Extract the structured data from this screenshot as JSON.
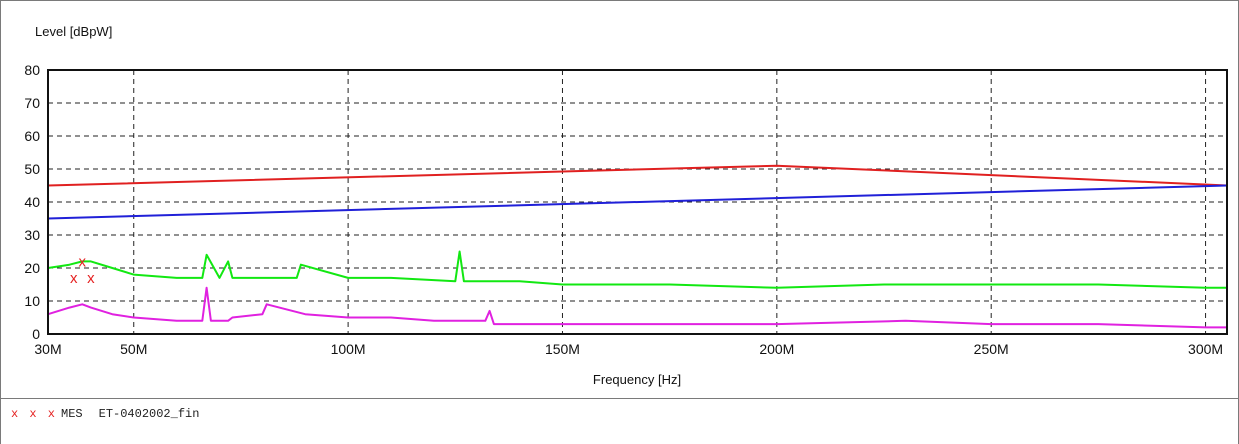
{
  "chart_data": {
    "type": "line",
    "ylabel": "Level [dBpW]",
    "xlabel": "Frequency [Hz]",
    "xlim": [
      30,
      305
    ],
    "ylim": [
      0,
      80
    ],
    "x_unit": "MHz",
    "y_ticks": [
      0,
      10,
      20,
      30,
      40,
      50,
      60,
      70,
      80
    ],
    "x_ticks": [
      {
        "value": 30,
        "label": "30M"
      },
      {
        "value": 50,
        "label": "50M"
      },
      {
        "value": 100,
        "label": "100M"
      },
      {
        "value": 150,
        "label": "150M"
      },
      {
        "value": 200,
        "label": "200M"
      },
      {
        "value": 250,
        "label": "250M"
      },
      {
        "value": 300,
        "label": "300M"
      }
    ],
    "grid": true,
    "series": [
      {
        "color": "#e02020",
        "x": [
          30,
          200,
          305
        ],
        "y": [
          45,
          51,
          45
        ]
      },
      {
        "color": "#2020d8",
        "x": [
          30,
          305
        ],
        "y": [
          35,
          45
        ]
      },
      {
        "color": "#12e812",
        "x": [
          30,
          35,
          38,
          40,
          45,
          50,
          60,
          66,
          67,
          70,
          72,
          73,
          80,
          88,
          89,
          100,
          110,
          125,
          126,
          127,
          130,
          140,
          150,
          160,
          175,
          200,
          225,
          250,
          275,
          300,
          305
        ],
        "y": [
          20,
          21,
          22,
          22,
          20,
          18,
          17,
          17,
          24,
          17,
          22,
          17,
          17,
          17,
          21,
          17,
          17,
          16,
          25,
          16,
          16,
          16,
          15,
          15,
          15,
          14,
          15,
          15,
          15,
          14,
          14
        ]
      },
      {
        "color": "#e021e0",
        "x": [
          30,
          35,
          38,
          40,
          45,
          50,
          60,
          66,
          67,
          68,
          72,
          73,
          80,
          81,
          90,
          100,
          110,
          120,
          132,
          133,
          134,
          150,
          175,
          200,
          230,
          250,
          275,
          300,
          305
        ],
        "y": [
          6,
          8,
          9,
          8,
          6,
          5,
          4,
          4,
          14,
          4,
          4,
          5,
          6,
          9,
          6,
          5,
          5,
          4,
          4,
          7,
          3,
          3,
          3,
          3,
          4,
          3,
          3,
          2,
          2
        ]
      }
    ],
    "markers": {
      "color": "#e52222",
      "symbol": "x",
      "points": [
        {
          "x": 36,
          "y": 17
        },
        {
          "x": 38,
          "y": 22
        },
        {
          "x": 40,
          "y": 17
        }
      ]
    }
  },
  "legend": {
    "markers": "x x x",
    "code": "MES",
    "name": "ET-0402002_fin"
  }
}
